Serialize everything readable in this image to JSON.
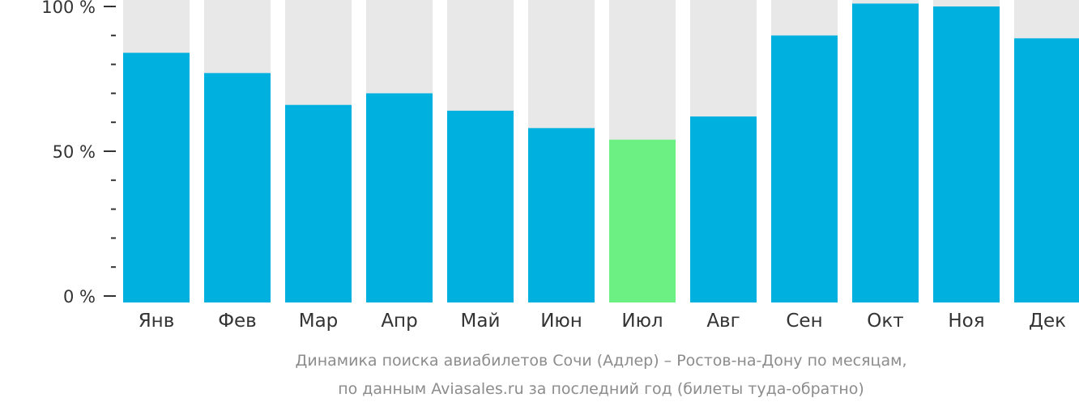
{
  "chart_data": {
    "type": "bar",
    "categories": [
      "Янв",
      "Фев",
      "Мар",
      "Апр",
      "Май",
      "Июн",
      "Июл",
      "Авг",
      "Сен",
      "Окт",
      "Ноя",
      "Дек"
    ],
    "values": [
      84,
      77,
      66,
      70,
      64,
      58,
      54,
      62,
      90,
      101,
      100,
      89
    ],
    "ylim": [
      0,
      100
    ],
    "yticks": [
      {
        "value": 100,
        "label": "100 %"
      },
      {
        "value": 50,
        "label": "50 %"
      },
      {
        "value": 0,
        "label": "0 %"
      }
    ],
    "minor_tick_step": 10,
    "highlight_index": 6,
    "colors": {
      "bar": "#00b0de",
      "highlight": "#6cf083",
      "background_bar": "#e8e8e8",
      "axis": "#333333"
    },
    "caption": [
      "Динамика поиска авиабилетов Сочи (Адлер) – Ростов-на-Дону по месяцам,",
      "по данным Aviasales.ru за последний год (билеты туда-обратно)"
    ]
  }
}
